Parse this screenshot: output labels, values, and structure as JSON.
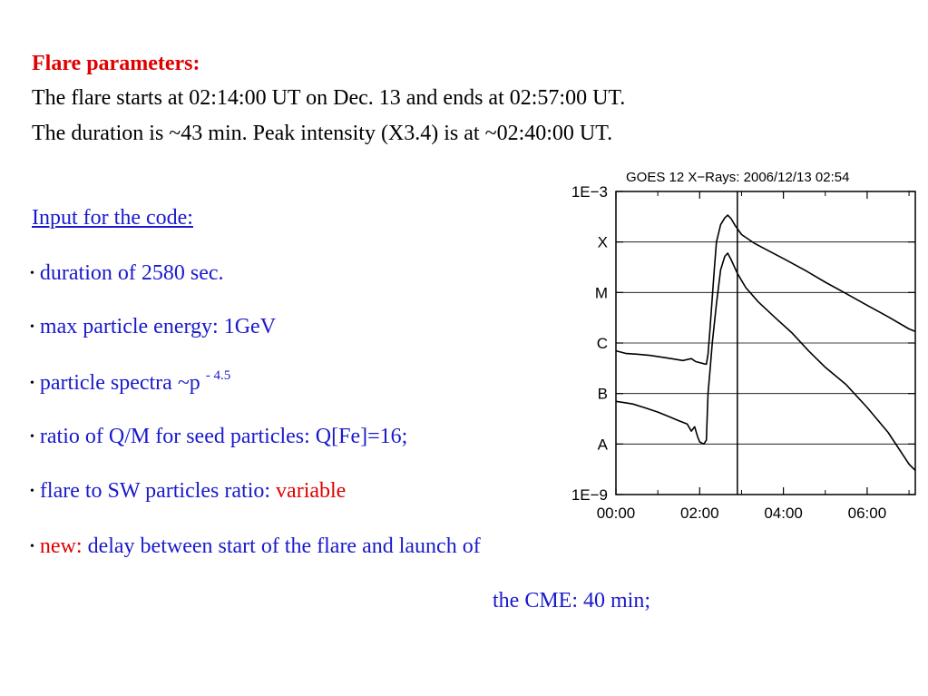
{
  "text": {
    "heading": "Flare parameters:",
    "line1": "The flare starts at 02:14:00 UT on Dec. 13 and ends at 02:57:00 UT.",
    "line2": "The duration is ~43 min. Peak intensity (X3.4) is at ~02:40:00 UT.",
    "input_heading": "Input for the code:",
    "bullet_char": "•",
    "b1": "duration of 2580 sec.",
    "b2": "max particle energy: 1GeV",
    "b3_text": "particle spectra ~p",
    "b3_exp": "- 4.5",
    "b4": "ratio of Q/M for seed particles: Q[Fe]=16;",
    "b5_text": "flare to SW particles ratio: ",
    "b5_value": "variable",
    "b6_new": "new:",
    "b6_text": " delay between start of the flare and launch of",
    "b6_cont": "the CME: 40 min;"
  },
  "colors": {
    "heading": "#e00000",
    "blue_text": "#1a1acc",
    "chart_line": "#000000",
    "grid": "#000000"
  },
  "chart_data": {
    "type": "line",
    "title": "GOES 12 X−Rays: 2006/12/13 02:54",
    "x_tick_labels": [
      "00:00",
      "02:00",
      "04:00",
      "06:00"
    ],
    "x_ticks_hours": [
      0,
      2,
      4,
      6
    ],
    "xlim_hours": [
      0,
      7.15
    ],
    "y_log": true,
    "ylim": [
      1e-09,
      0.001
    ],
    "y_tick_labels": [
      "1E−3",
      "X",
      "M",
      "C",
      "B",
      "A",
      "1E−9"
    ],
    "y_tick_values": [
      0.001,
      0.0001,
      1e-05,
      1e-06,
      1e-07,
      1e-08,
      1e-09
    ],
    "grid": "horizontal",
    "vertical_marker_hours": 2.9,
    "series": [
      {
        "x": [
          0,
          0.25,
          0.5,
          0.8,
          1.2,
          1.6,
          1.8,
          1.9,
          2.0,
          2.1,
          2.16,
          2.2,
          2.25,
          2.3,
          2.35,
          2.4,
          2.5,
          2.6,
          2.67,
          2.75,
          2.85,
          3.0,
          3.3,
          3.6,
          4.0,
          4.5,
          5.0,
          5.5,
          6.0,
          6.5,
          7.0,
          7.15
        ],
        "y": [
          7e-07,
          6.2e-07,
          6e-07,
          5.7e-07,
          5.1e-07,
          4.5e-07,
          4.9e-07,
          4.3e-07,
          4.1e-07,
          3.9e-07,
          3.8e-07,
          6e-07,
          2e-06,
          8e-06,
          3e-05,
          0.0001,
          0.00022,
          0.0003,
          0.00034,
          0.00029,
          0.00021,
          0.00014,
          9.5e-05,
          7e-05,
          4.7e-05,
          2.8e-05,
          1.6e-05,
          9.5e-06,
          5.6e-06,
          3.3e-06,
          1.9e-06,
          1.7e-06
        ]
      },
      {
        "x": [
          0,
          0.2,
          0.4,
          0.7,
          1.0,
          1.3,
          1.5,
          1.7,
          1.8,
          1.88,
          1.95,
          2.0,
          2.1,
          2.16,
          2.2,
          2.25,
          2.3,
          2.4,
          2.5,
          2.6,
          2.67,
          2.75,
          2.9,
          3.1,
          3.4,
          3.8,
          4.2,
          4.6,
          5.0,
          5.5,
          6.0,
          6.5,
          7.0,
          7.15
        ],
        "y": [
          7e-08,
          6.6e-08,
          6.2e-08,
          5.2e-08,
          4.3e-08,
          3.4e-08,
          2.9e-08,
          2.5e-08,
          1.8e-08,
          2.2e-08,
          1.4e-08,
          1.1e-08,
          1e-08,
          1.2e-08,
          1e-07,
          3e-07,
          1e-06,
          6e-06,
          2.8e-05,
          5.2e-05,
          6e-05,
          4.5e-05,
          2.4e-05,
          1.25e-05,
          6.5e-06,
          3.2e-06,
          1.6e-06,
          7e-07,
          3.3e-07,
          1.5e-07,
          5.3e-08,
          1.7e-08,
          4e-09,
          3e-09
        ]
      }
    ]
  }
}
